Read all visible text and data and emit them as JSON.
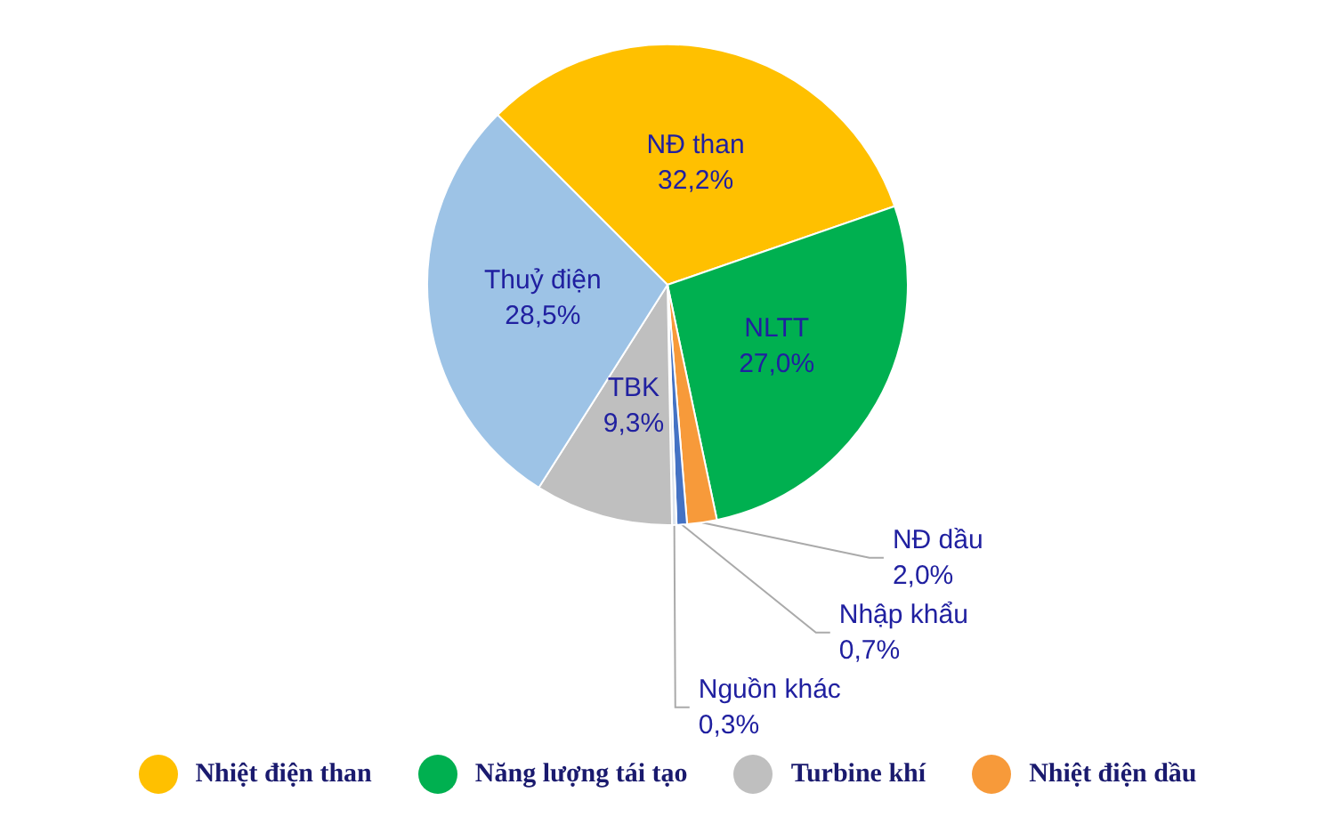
{
  "chart_data": {
    "type": "pie",
    "categories": [
      "NĐ than",
      "NLTT",
      "NĐ dầu",
      "Nhập khẩu",
      "Nguồn khác",
      "TBK",
      "Thuỷ điện"
    ],
    "values": [
      32.2,
      27.0,
      2.0,
      0.7,
      0.3,
      9.3,
      28.5
    ],
    "value_labels": [
      "32,2%",
      "27,0%",
      "2,0%",
      "0,7%",
      "0,3%",
      "9,3%",
      "28,5%"
    ],
    "colors": [
      "#ffc000",
      "#00b050",
      "#f79a3a",
      "#4472c4",
      "#dde4ec",
      "#bfbfbf",
      "#9dc3e6"
    ],
    "annotations": [
      {
        "text": "Nhiệt điện than",
        "x": "NĐ than"
      },
      {
        "text": "Năng lượng tái tạo",
        "x": "NLTT"
      },
      {
        "text": "Turbine khí",
        "x": "TBK"
      },
      {
        "text": "Nhiệt điện dầu",
        "x": "NĐ dầu"
      }
    ]
  }
}
